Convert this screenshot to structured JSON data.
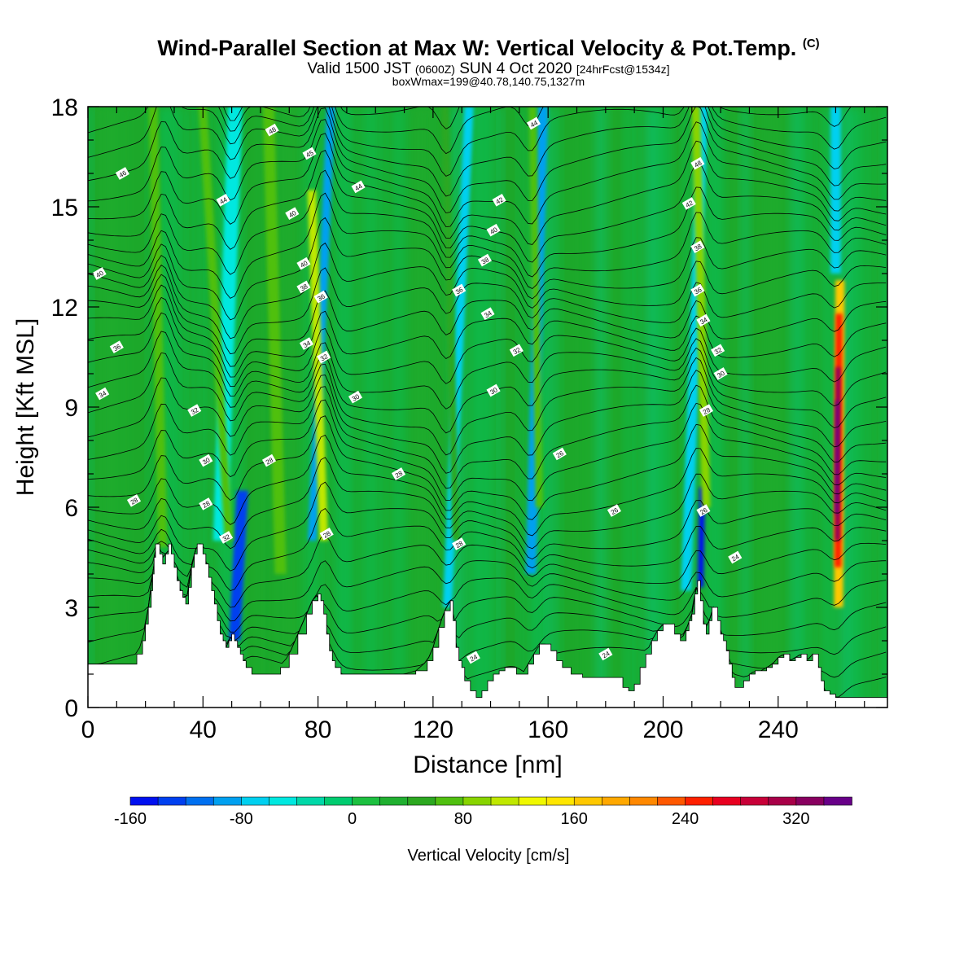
{
  "header": {
    "title": "Wind-Parallel Section at Max W: Vertical Velocity & Pot.Temp.",
    "copyright": "(C)",
    "valid_prefix": "Valid 1500 JST",
    "valid_zulu": "(0600Z)",
    "valid_date": "SUN 4 Oct 2020",
    "forecast": "[24hrFcst@1534z]",
    "boxwmax": "boxWmax=199@40.78,140.75,1327m"
  },
  "colors": {
    "background_field": "#1ca82a",
    "terrain": "#ffffff",
    "contour": "#000000",
    "updraft_core": "#d9002e",
    "downdraft_core": "#0033ff"
  },
  "chart_data": {
    "type": "heatmap",
    "xlabel": "Distance [nm]",
    "ylabel": "Height [Kft MSL]",
    "xlim": [
      0,
      278
    ],
    "ylim": [
      0,
      18
    ],
    "xticks": [
      0,
      40,
      80,
      120,
      160,
      200,
      240
    ],
    "yticks": [
      0,
      3,
      6,
      9,
      12,
      15,
      18
    ],
    "colorbar": {
      "label": "Vertical Velocity [cm/s]",
      "min": -160,
      "max": 360,
      "step": 20,
      "tick_labels": [
        -160,
        -80,
        0,
        80,
        160,
        240,
        320
      ],
      "colors": [
        "#0010f0",
        "#0040f0",
        "#0070f0",
        "#00a0f0",
        "#00d0f0",
        "#00e8e0",
        "#00d8a8",
        "#00cc70",
        "#1cc040",
        "#20b030",
        "#2ca820",
        "#50c010",
        "#88d400",
        "#c0e800",
        "#f0f800",
        "#ffe600",
        "#ffc800",
        "#ffa800",
        "#ff8800",
        "#ff5800",
        "#ff2000",
        "#e80020",
        "#c80038",
        "#a80048",
        "#880060",
        "#680088"
      ]
    },
    "terrain_profile": {
      "x": [
        0,
        14,
        17,
        19,
        20,
        21,
        22,
        22.5,
        23,
        23.5,
        24,
        25,
        26,
        27,
        28,
        29,
        30,
        31,
        32,
        33,
        34,
        35,
        36,
        37,
        38,
        39,
        40,
        41,
        42,
        43,
        44,
        45,
        46,
        47,
        48,
        49,
        50,
        51,
        52,
        53,
        54,
        55,
        57,
        60,
        64,
        67,
        70,
        73,
        76,
        78,
        80,
        81,
        82,
        83,
        84,
        85,
        86,
        88,
        90,
        94,
        98,
        102,
        106,
        110,
        114,
        118,
        120,
        122,
        124,
        126,
        127,
        128,
        129,
        130,
        131,
        133,
        135,
        137,
        139,
        141,
        143,
        145,
        147,
        149,
        151,
        153,
        155,
        157,
        159,
        161,
        163,
        165,
        168,
        172,
        176,
        180,
        184,
        186,
        188,
        190,
        192,
        194,
        196,
        198,
        200,
        202,
        204,
        206,
        208,
        209,
        210,
        211,
        212,
        213,
        214,
        215,
        216,
        217,
        218,
        219,
        220,
        221,
        222,
        223,
        224,
        225,
        226,
        228,
        230,
        232,
        234,
        236,
        238,
        240,
        242,
        244,
        246,
        248,
        250,
        252,
        254,
        255,
        256,
        258,
        260,
        262,
        264,
        266,
        268,
        270,
        272,
        275,
        278
      ],
      "y": [
        1.3,
        1.3,
        1.6,
        2.0,
        2.5,
        3.0,
        3.5,
        4.0,
        4.5,
        4.9,
        4.9,
        4.6,
        4.3,
        4.6,
        4.9,
        4.6,
        4.2,
        3.8,
        3.5,
        3.3,
        3.1,
        3.6,
        4.2,
        4.6,
        4.9,
        4.9,
        4.6,
        4.3,
        3.9,
        3.5,
        3.1,
        2.6,
        2.2,
        2.0,
        1.8,
        2.0,
        2.2,
        2.0,
        1.8,
        1.6,
        1.4,
        1.2,
        1.0,
        1.0,
        1.0,
        1.2,
        1.6,
        2.2,
        2.8,
        3.2,
        3.4,
        3.2,
        2.8,
        2.2,
        1.7,
        1.4,
        1.2,
        1.0,
        1.0,
        1.0,
        1.0,
        1.0,
        1.0,
        1.0,
        1.1,
        1.4,
        1.8,
        2.4,
        2.9,
        3.2,
        2.6,
        1.8,
        1.4,
        1.2,
        0.8,
        0.5,
        0.3,
        0.5,
        0.8,
        1.0,
        1.1,
        1.2,
        1.2,
        1.0,
        1.0,
        1.3,
        1.6,
        1.9,
        1.9,
        1.7,
        1.4,
        1.2,
        1.0,
        0.9,
        0.9,
        0.9,
        0.9,
        0.6,
        0.5,
        0.7,
        1.2,
        1.6,
        2.0,
        2.3,
        2.5,
        2.5,
        2.2,
        2.0,
        2.3,
        2.6,
        2.8,
        3.4,
        3.8,
        3.2,
        2.5,
        2.2,
        2.6,
        3.0,
        3.0,
        2.6,
        2.2,
        2.0,
        1.7,
        1.3,
        0.9,
        0.6,
        0.6,
        0.8,
        1.0,
        1.1,
        1.1,
        1.2,
        1.3,
        1.5,
        1.6,
        1.4,
        1.5,
        1.6,
        1.4,
        1.6,
        1.2,
        0.8,
        0.5,
        0.4,
        0.3,
        0.3,
        0.3,
        0.3,
        0.3,
        0.3,
        0.3,
        0.3,
        0.3
      ]
    },
    "velocity_features": [
      {
        "x": 26,
        "ybot": 4.8,
        "ytop": 18,
        "w": 1.6,
        "tilt": -0.25,
        "v": 70
      },
      {
        "x": 46,
        "ybot": 5.0,
        "ytop": 18,
        "w": 2.5,
        "tilt": 0.4,
        "v": -60
      },
      {
        "x": 51,
        "ybot": 2.0,
        "ytop": 6.5,
        "w": 2.0,
        "tilt": 0.6,
        "v": -140
      },
      {
        "x": 49,
        "ybot": 5.0,
        "ytop": 18,
        "w": 1.5,
        "tilt": -0.7,
        "v": 60
      },
      {
        "x": 67,
        "ybot": 4.0,
        "ytop": 18,
        "w": 2.0,
        "tilt": -0.3,
        "v": 60
      },
      {
        "x": 78,
        "ybot": 5.0,
        "ytop": 18,
        "w": 1.5,
        "tilt": 0.5,
        "v": -90
      },
      {
        "x": 82,
        "ybot": 5.0,
        "ytop": 15.5,
        "w": 1.5,
        "tilt": -0.4,
        "v": 100
      },
      {
        "x": 125,
        "ybot": 3.0,
        "ytop": 18,
        "w": 1.6,
        "tilt": 0.5,
        "v": -80
      },
      {
        "x": 128,
        "ybot": 5.0,
        "ytop": 18,
        "w": 1.3,
        "tilt": -0.3,
        "v": 50
      },
      {
        "x": 154,
        "ybot": 4.0,
        "ytop": 18,
        "w": 1.8,
        "tilt": 0.3,
        "v": -90
      },
      {
        "x": 157,
        "ybot": 6.0,
        "ytop": 18,
        "w": 1.3,
        "tilt": -0.2,
        "v": 60
      },
      {
        "x": 208,
        "ybot": 3.5,
        "ytop": 18,
        "w": 1.8,
        "tilt": 0.4,
        "v": -70
      },
      {
        "x": 213,
        "ybot": 3.6,
        "ytop": 6.6,
        "w": 1.0,
        "tilt": 0.2,
        "v": -160
      },
      {
        "x": 215,
        "ybot": 6.0,
        "ytop": 18,
        "w": 1.5,
        "tilt": -0.3,
        "v": 80
      },
      {
        "x": 260,
        "ybot": 13.0,
        "ytop": 18,
        "w": 1.8,
        "tilt": 0,
        "v": -80
      },
      {
        "x": 261,
        "ybot": 3.0,
        "ytop": 12.8,
        "w": 1.6,
        "tilt": 0.05,
        "v": 160
      },
      {
        "x": 260.8,
        "ybot": 4.2,
        "ytop": 11.8,
        "w": 1.2,
        "tilt": 0.05,
        "v": 240
      },
      {
        "x": 260.6,
        "ybot": 5.0,
        "ytop": 10.2,
        "w": 0.8,
        "tilt": 0.05,
        "v": 320
      },
      {
        "x": 260.3,
        "ybot": 5.8,
        "ytop": 9.2,
        "w": 0.5,
        "tilt": 0.05,
        "v": 360
      }
    ],
    "theta_contour_labels": [
      {
        "x": 12,
        "y": 16.0,
        "text": "46"
      },
      {
        "x": 47,
        "y": 15.2,
        "text": "44"
      },
      {
        "x": 64,
        "y": 17.3,
        "text": "48"
      },
      {
        "x": 77,
        "y": 16.6,
        "text": "45"
      },
      {
        "x": 94,
        "y": 15.6,
        "text": "44"
      },
      {
        "x": 71,
        "y": 14.8,
        "text": "40"
      },
      {
        "x": 75,
        "y": 13.3,
        "text": "40"
      },
      {
        "x": 75,
        "y": 12.6,
        "text": "38"
      },
      {
        "x": 81,
        "y": 12.3,
        "text": "36"
      },
      {
        "x": 4,
        "y": 13.0,
        "text": "40"
      },
      {
        "x": 10,
        "y": 10.8,
        "text": "36"
      },
      {
        "x": 76,
        "y": 10.9,
        "text": "34"
      },
      {
        "x": 82,
        "y": 10.5,
        "text": "32"
      },
      {
        "x": 155,
        "y": 17.5,
        "text": "44"
      },
      {
        "x": 143,
        "y": 15.2,
        "text": "42"
      },
      {
        "x": 141,
        "y": 14.3,
        "text": "40"
      },
      {
        "x": 138,
        "y": 13.4,
        "text": "38"
      },
      {
        "x": 129,
        "y": 12.5,
        "text": "36"
      },
      {
        "x": 139,
        "y": 11.8,
        "text": "34"
      },
      {
        "x": 149,
        "y": 10.7,
        "text": "32"
      },
      {
        "x": 141,
        "y": 9.5,
        "text": "30"
      },
      {
        "x": 212,
        "y": 16.3,
        "text": "48"
      },
      {
        "x": 209,
        "y": 15.1,
        "text": "42"
      },
      {
        "x": 212,
        "y": 13.8,
        "text": "38"
      },
      {
        "x": 212,
        "y": 12.5,
        "text": "36"
      },
      {
        "x": 214,
        "y": 11.6,
        "text": "34"
      },
      {
        "x": 219,
        "y": 10.7,
        "text": "32"
      },
      {
        "x": 220,
        "y": 10.0,
        "text": "30"
      },
      {
        "x": 215,
        "y": 8.9,
        "text": "28"
      },
      {
        "x": 5,
        "y": 9.4,
        "text": "34"
      },
      {
        "x": 37,
        "y": 8.9,
        "text": "32"
      },
      {
        "x": 93,
        "y": 9.3,
        "text": "30"
      },
      {
        "x": 41,
        "y": 7.4,
        "text": "30"
      },
      {
        "x": 63,
        "y": 7.4,
        "text": "28"
      },
      {
        "x": 108,
        "y": 7.0,
        "text": "28"
      },
      {
        "x": 164,
        "y": 7.6,
        "text": "26"
      },
      {
        "x": 16,
        "y": 6.2,
        "text": "28"
      },
      {
        "x": 41,
        "y": 6.1,
        "text": "28"
      },
      {
        "x": 48,
        "y": 5.1,
        "text": "32"
      },
      {
        "x": 83,
        "y": 5.2,
        "text": "28"
      },
      {
        "x": 129,
        "y": 4.9,
        "text": "28"
      },
      {
        "x": 183,
        "y": 5.9,
        "text": "26"
      },
      {
        "x": 214,
        "y": 5.9,
        "text": "26"
      },
      {
        "x": 225,
        "y": 4.5,
        "text": "24"
      },
      {
        "x": 134,
        "y": 1.5,
        "text": "24"
      },
      {
        "x": 180,
        "y": 1.6,
        "text": "24"
      }
    ]
  }
}
